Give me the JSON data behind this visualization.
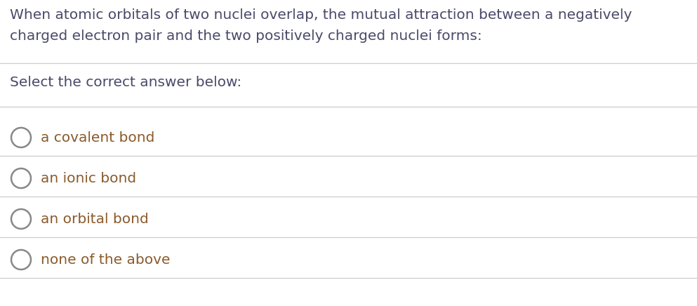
{
  "background_color": "#ffffff",
  "question_text_line1": "When atomic orbitals of two nuclei overlap, the mutual attraction between a negatively",
  "question_text_line2": "charged electron pair and the two positively charged nuclei forms:",
  "prompt_text": "Select the correct answer below:",
  "options": [
    "a covalent bond",
    "an ionic bond",
    "an orbital bond",
    "none of the above"
  ],
  "question_text_color": "#4a4a6a",
  "option_text_color": "#8b5a2b",
  "line_color": "#cccccc",
  "circle_color": "#888888",
  "question_fontsize": 14.5,
  "prompt_fontsize": 14.5,
  "option_fontsize": 14.5,
  "fig_width": 9.93,
  "fig_height": 4.36,
  "dpi": 100
}
